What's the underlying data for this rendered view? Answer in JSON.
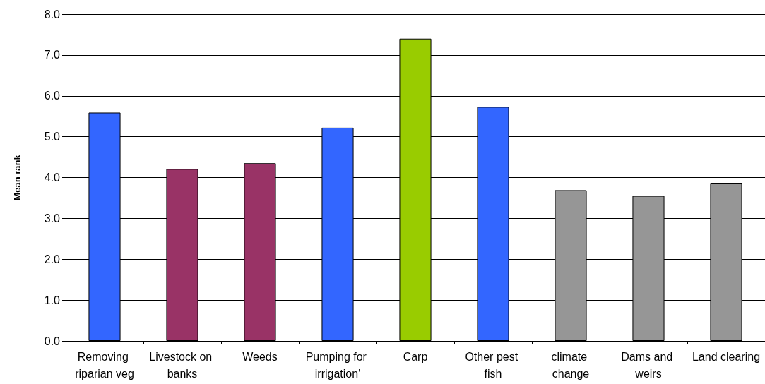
{
  "chart_data": {
    "type": "bar",
    "ylabel": "Mean rank",
    "categories": [
      "Removing riparian veg",
      "Livestock on banks",
      "Weeds",
      "Pumping for irrigation'",
      "Carp",
      "Other pest fish",
      "climate change",
      "Dams and weirs",
      "Land clearing"
    ],
    "values": [
      5.59,
      4.21,
      4.35,
      5.22,
      7.4,
      5.73,
      3.69,
      3.55,
      3.87
    ],
    "colors": [
      "#3366ff",
      "#993366",
      "#993366",
      "#3366ff",
      "#99cc00",
      "#3366ff",
      "#969696",
      "#969696",
      "#969696"
    ],
    "ylim": [
      0,
      8
    ],
    "yticks": [
      {
        "value": 0,
        "label": "0.0"
      },
      {
        "value": 1,
        "label": "1.0"
      },
      {
        "value": 2,
        "label": "2.0"
      },
      {
        "value": 3,
        "label": "3.0"
      },
      {
        "value": 4,
        "label": "4.0"
      },
      {
        "value": 5,
        "label": "5.0"
      },
      {
        "value": 6,
        "label": "6.0"
      },
      {
        "value": 7,
        "label": "7.0"
      },
      {
        "value": 8,
        "label": "8.0"
      }
    ],
    "grid": "y"
  }
}
